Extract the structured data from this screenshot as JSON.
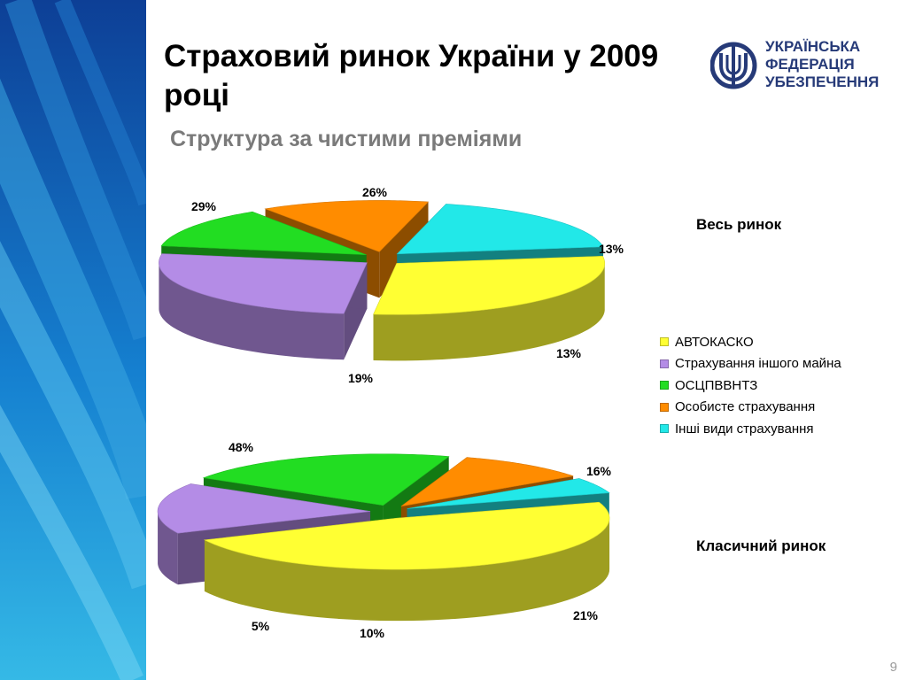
{
  "slide": {
    "title": "Страховий ринок України у 2009 році",
    "subtitle": "Структура за чистими преміями",
    "page_number": "9"
  },
  "logo": {
    "lines": [
      "УКРАЇНСЬКА",
      "ФЕДЕРАЦІЯ",
      "УБЕЗПЕЧЕННЯ"
    ]
  },
  "colors": {
    "sidebar_dark": "#0d3f96",
    "sidebar_light": "#35b9e6",
    "logo_blue": "#263a78"
  },
  "chart_data": [
    {
      "type": "pie",
      "title": "Весь ринок",
      "categories": [
        "АВТОКАСКО",
        "Страхування іншого майна",
        "ОСЦПВВНТЗ",
        "Особисте страхування",
        "Інші види страхування"
      ],
      "values": [
        29,
        26,
        13,
        13,
        19
      ],
      "labels": [
        "29%",
        "26%",
        "13%",
        "13%",
        "19%"
      ],
      "colors": [
        "#ffff33",
        "#b48ce6",
        "#22dd22",
        "#ff8c00",
        "#22e8e8"
      ]
    },
    {
      "type": "pie",
      "title": "Класичний ринок",
      "categories": [
        "АВТОКАСКО",
        "Страхування іншого майна",
        "ОСЦПВВНТЗ",
        "Особисте страхування",
        "Інші види страхування"
      ],
      "values": [
        48,
        16,
        21,
        10,
        5
      ],
      "labels": [
        "48%",
        "16%",
        "21%",
        "10%",
        "5%"
      ],
      "colors": [
        "#ffff33",
        "#b48ce6",
        "#22dd22",
        "#ff8c00",
        "#22e8e8"
      ]
    }
  ],
  "legend": {
    "placement": "right",
    "items": [
      {
        "label": "АВТОКАСКО",
        "color": "#ffff33"
      },
      {
        "label": "Страхування іншого майна",
        "color": "#b48ce6"
      },
      {
        "label": "ОСЦПВВНТЗ",
        "color": "#22dd22"
      },
      {
        "label": "Особисте страхування",
        "color": "#ff8c00"
      },
      {
        "label": "Інші види страхування",
        "color": "#22e8e8"
      }
    ]
  }
}
